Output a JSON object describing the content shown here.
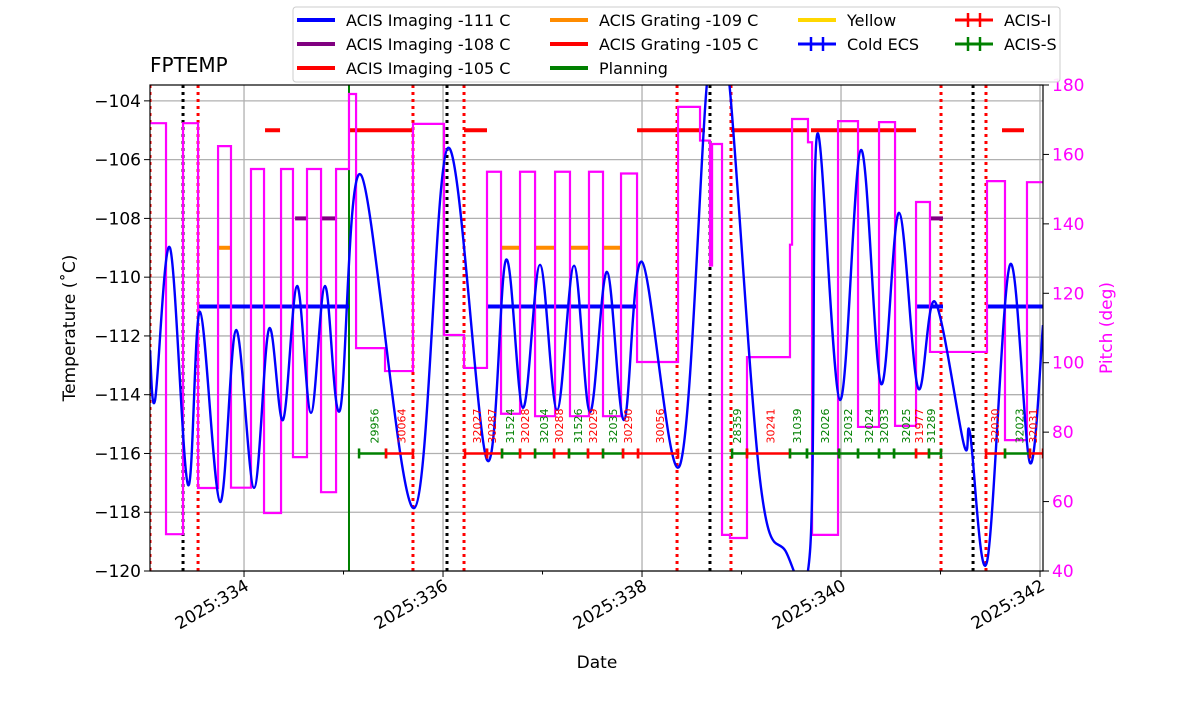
{
  "chart_data": {
    "type": "line",
    "title": "FPTEMP",
    "xlabel": "Date",
    "ylabel": "Temperature ($^\\circ$C)",
    "ylabel_display": "Temperature (˚C)",
    "y2label": "Pitch (deg)",
    "xlim": [
      333.055,
      342.03
    ],
    "ylim": [
      -120,
      -103.46
    ],
    "y2lim": [
      40,
      180
    ],
    "grid": true,
    "legend_placement": "top (above plot)",
    "x_ticks": [
      334,
      336,
      338,
      340,
      342
    ],
    "x_minor_ticks": [
      335,
      337,
      339,
      341
    ],
    "x_tick_labels": [
      "2025:334",
      "2025:336",
      "2025:338",
      "2025:340",
      "2025:342"
    ],
    "y_ticks": [
      -120,
      -118,
      -116,
      -114,
      -112,
      -110,
      -108,
      -106,
      -104
    ],
    "y_tick_labels": [
      "−120",
      "−118",
      "−116",
      "−114",
      "−112",
      "−110",
      "−108",
      "−106",
      "−104"
    ],
    "y2_ticks": [
      40,
      60,
      80,
      100,
      120,
      140,
      160,
      180
    ],
    "y2_tick_labels": [
      "40",
      "60",
      "80",
      "100",
      "120",
      "140",
      "160",
      "180"
    ],
    "colors": {
      "temperature": "#0000ff",
      "pitch": "#ff00ff",
      "imaging_111": "#0000ff",
      "imaging_108": "#800080",
      "imaging_105": "#ff0000",
      "grating_109": "#ff8c00",
      "grating_105": "#ff0000",
      "planning": "#008000",
      "yellow": "#ffd700",
      "acis_i": "#ff0000",
      "acis_s": "#008000",
      "grid": "#b0b0b0"
    },
    "legend": [
      {
        "label": "ACIS Imaging -111 C",
        "color": "#0000ff",
        "style": "line"
      },
      {
        "label": "ACIS Imaging -108 C",
        "color": "#800080",
        "style": "line"
      },
      {
        "label": "ACIS Imaging -105 C",
        "color": "#ff0000",
        "style": "line"
      },
      {
        "label": "ACIS Grating -109 C",
        "color": "#ff8c00",
        "style": "line"
      },
      {
        "label": "ACIS Grating -105 C",
        "color": "#ff0000",
        "style": "line"
      },
      {
        "label": "Planning",
        "color": "#008000",
        "style": "line"
      },
      {
        "label": "Yellow",
        "color": "#ffd700",
        "style": "line"
      },
      {
        "label": "Cold ECS",
        "color": "#0000ff",
        "style": "errorbar"
      },
      {
        "label": "ACIS-I",
        "color": "#ff0000",
        "style": "errorbar"
      },
      {
        "label": "ACIS-S",
        "color": "#008000",
        "style": "errorbar"
      }
    ],
    "temperature": [
      [
        333.055,
        -112.48
      ],
      [
        333.106,
        -114.18
      ],
      [
        333.256,
        -109.0
      ],
      [
        333.437,
        -117.07
      ],
      [
        333.558,
        -111.18
      ],
      [
        333.759,
        -117.65
      ],
      [
        333.92,
        -111.8
      ],
      [
        334.101,
        -117.17
      ],
      [
        334.251,
        -111.76
      ],
      [
        334.392,
        -114.86
      ],
      [
        334.533,
        -110.3
      ],
      [
        334.673,
        -114.62
      ],
      [
        334.814,
        -110.3
      ],
      [
        334.965,
        -114.52
      ],
      [
        335.176,
        -106.52
      ],
      [
        335.709,
        -117.86
      ],
      [
        336.05,
        -105.6
      ],
      [
        336.442,
        -116.22
      ],
      [
        336.633,
        -109.41
      ],
      [
        336.804,
        -114.45
      ],
      [
        336.975,
        -109.58
      ],
      [
        337.146,
        -114.52
      ],
      [
        337.317,
        -109.61
      ],
      [
        337.477,
        -114.59
      ],
      [
        337.648,
        -109.82
      ],
      [
        337.819,
        -114.86
      ],
      [
        338.0,
        -109.48
      ],
      [
        338.382,
        -116.39
      ],
      [
        338.65,
        -103.5
      ],
      [
        338.76,
        -102.3
      ],
      [
        338.88,
        -103.5
      ],
      [
        339.186,
        -116.9
      ],
      [
        339.437,
        -119.29
      ],
      [
        339.688,
        -119.35
      ],
      [
        339.759,
        -105.16
      ],
      [
        339.99,
        -114.18
      ],
      [
        340.201,
        -105.67
      ],
      [
        340.402,
        -113.63
      ],
      [
        340.583,
        -107.81
      ],
      [
        340.774,
        -113.77
      ],
      [
        340.945,
        -110.84
      ],
      [
        341.236,
        -115.71
      ],
      [
        341.296,
        -115.3
      ],
      [
        341.467,
        -119.69
      ],
      [
        341.698,
        -109.58
      ],
      [
        341.899,
        -116.32
      ],
      [
        342.03,
        -111.63
      ]
    ],
    "pitch_steps": [
      [
        333.055,
        169
      ],
      [
        333.216,
        50.6
      ],
      [
        333.387,
        169
      ],
      [
        333.538,
        63.9
      ],
      [
        333.739,
        162.4
      ],
      [
        333.869,
        64
      ],
      [
        334.07,
        155.8
      ],
      [
        334.201,
        56.7
      ],
      [
        334.372,
        155.8
      ],
      [
        334.492,
        72.8
      ],
      [
        334.633,
        155.8
      ],
      [
        334.774,
        62.7
      ],
      [
        334.925,
        155.8
      ],
      [
        335.055,
        177.4
      ],
      [
        335.126,
        104.2
      ],
      [
        335.417,
        97.6
      ],
      [
        335.698,
        168.8
      ],
      [
        336.01,
        108
      ],
      [
        336.211,
        98.5
      ],
      [
        336.442,
        155
      ],
      [
        336.583,
        85.3
      ],
      [
        336.774,
        155
      ],
      [
        336.925,
        84.6
      ],
      [
        337.126,
        155
      ],
      [
        337.276,
        84.6
      ],
      [
        337.467,
        155
      ],
      [
        337.608,
        84.6
      ],
      [
        337.789,
        154.5
      ],
      [
        337.95,
        100.2
      ],
      [
        338.362,
        173.7
      ],
      [
        338.583,
        164
      ],
      [
        338.683,
        128
      ],
      [
        338.704,
        163
      ],
      [
        338.804,
        50.4
      ],
      [
        338.884,
        49.5
      ],
      [
        339.055,
        101.6
      ],
      [
        339.487,
        134
      ],
      [
        339.508,
        170.2
      ],
      [
        339.668,
        163.5
      ],
      [
        339.709,
        50.4
      ],
      [
        339.97,
        169.6
      ],
      [
        340.171,
        81.5
      ],
      [
        340.382,
        169.3
      ],
      [
        340.543,
        81.8
      ],
      [
        340.754,
        146.3
      ],
      [
        340.894,
        103.1
      ],
      [
        341.467,
        152.3
      ],
      [
        341.648,
        77.7
      ],
      [
        341.869,
        152
      ],
      [
        342.03,
        152
      ]
    ],
    "limit_bars": [
      {
        "level": -111,
        "color": "#0000ff",
        "ranges": [
          [
            333.538,
            335.055
          ],
          [
            336.442,
            337.95
          ],
          [
            340.764,
            341.025
          ],
          [
            341.457,
            342.03
          ]
        ]
      },
      {
        "level": -108,
        "color": "#800080",
        "ranges": [
          [
            334.513,
            334.643
          ],
          [
            334.784,
            334.925
          ],
          [
            340.894,
            341.025
          ]
        ]
      },
      {
        "level": -109,
        "color": "#ff8c00",
        "ranges": [
          [
            333.739,
            333.869
          ],
          [
            336.583,
            336.774
          ],
          [
            336.925,
            337.126
          ],
          [
            337.276,
            337.467
          ],
          [
            337.608,
            337.789
          ]
        ]
      },
      {
        "level": -105,
        "color": "#ff0000",
        "ranges": [
          [
            334.211,
            334.362
          ],
          [
            335.055,
            335.698
          ],
          [
            336.211,
            336.442
          ],
          [
            337.95,
            338.633
          ],
          [
            338.894,
            339.668
          ],
          [
            339.698,
            340.754
          ],
          [
            341.618,
            341.839
          ]
        ]
      }
    ],
    "vlines": [
      {
        "day": 333.055,
        "color": "#ff0000",
        "style": "dotted"
      },
      {
        "day": 333.387,
        "color": "#000000",
        "style": "dotted"
      },
      {
        "day": 333.538,
        "color": "#ff0000",
        "style": "dotted"
      },
      {
        "day": 335.055,
        "color": "#008000",
        "style": "solid"
      },
      {
        "day": 335.698,
        "color": "#ff0000",
        "style": "dotted"
      },
      {
        "day": 336.04,
        "color": "#000000",
        "style": "dotted"
      },
      {
        "day": 336.211,
        "color": "#ff0000",
        "style": "dotted"
      },
      {
        "day": 338.352,
        "color": "#ff0000",
        "style": "dotted"
      },
      {
        "day": 338.683,
        "color": "#000000",
        "style": "dotted"
      },
      {
        "day": 338.894,
        "color": "#ff0000",
        "style": "dotted"
      },
      {
        "day": 341.005,
        "color": "#ff0000",
        "style": "dotted"
      },
      {
        "day": 341.327,
        "color": "#000000",
        "style": "dotted"
      },
      {
        "day": 341.457,
        "color": "#ff0000",
        "style": "dotted"
      }
    ],
    "obsid_level": -116,
    "obsids": [
      {
        "obsid": "29956",
        "start": 335.156,
        "end": 335.427,
        "instrument": "ACIS-S"
      },
      {
        "obsid": "30064",
        "start": 335.427,
        "end": 335.698,
        "instrument": "ACIS-I"
      },
      {
        "obsid": "32027",
        "start": 336.221,
        "end": 336.442,
        "instrument": "ACIS-I"
      },
      {
        "obsid": "30287",
        "start": 336.442,
        "end": 336.593,
        "instrument": "ACIS-I"
      },
      {
        "obsid": "31524",
        "start": 336.593,
        "end": 336.774,
        "instrument": "ACIS-S"
      },
      {
        "obsid": "32028",
        "start": 336.774,
        "end": 336.925,
        "instrument": "ACIS-I"
      },
      {
        "obsid": "32034",
        "start": 336.925,
        "end": 337.116,
        "instrument": "ACIS-S"
      },
      {
        "obsid": "30288",
        "start": 337.116,
        "end": 337.266,
        "instrument": "ACIS-I"
      },
      {
        "obsid": "31526",
        "start": 337.266,
        "end": 337.457,
        "instrument": "ACIS-S"
      },
      {
        "obsid": "32029",
        "start": 337.457,
        "end": 337.608,
        "instrument": "ACIS-I"
      },
      {
        "obsid": "32035",
        "start": 337.608,
        "end": 337.809,
        "instrument": "ACIS-S"
      },
      {
        "obsid": "30290",
        "start": 337.809,
        "end": 337.96,
        "instrument": "ACIS-I"
      },
      {
        "obsid": "30056",
        "start": 337.96,
        "end": 338.362,
        "instrument": "ACIS-I"
      },
      {
        "obsid": "28359",
        "start": 338.905,
        "end": 339.055,
        "instrument": "ACIS-S"
      },
      {
        "obsid": "30241",
        "start": 339.055,
        "end": 339.487,
        "instrument": "ACIS-I"
      },
      {
        "obsid": "31039",
        "start": 339.487,
        "end": 339.658,
        "instrument": "ACIS-S"
      },
      {
        "obsid": "32026",
        "start": 339.658,
        "end": 339.98,
        "instrument": "ACIS-S"
      },
      {
        "obsid": "32032",
        "start": 339.98,
        "end": 340.171,
        "instrument": "ACIS-S"
      },
      {
        "obsid": "32024",
        "start": 340.171,
        "end": 340.382,
        "instrument": "ACIS-S"
      },
      {
        "obsid": "32033",
        "start": 340.382,
        "end": 340.533,
        "instrument": "ACIS-S"
      },
      {
        "obsid": "32025",
        "start": 340.533,
        "end": 340.754,
        "instrument": "ACIS-S"
      },
      {
        "obsid": "31977",
        "start": 340.754,
        "end": 340.884,
        "instrument": "ACIS-I"
      },
      {
        "obsid": "31289",
        "start": 340.884,
        "end": 341.005,
        "instrument": "ACIS-S"
      },
      {
        "obsid": "32030",
        "start": 341.457,
        "end": 341.648,
        "instrument": "ACIS-I"
      },
      {
        "obsid": "32023",
        "start": 341.648,
        "end": 341.899,
        "instrument": "ACIS-S"
      },
      {
        "obsid": "32031",
        "start": 341.899,
        "end": 342.03,
        "instrument": "ACIS-I"
      }
    ]
  }
}
